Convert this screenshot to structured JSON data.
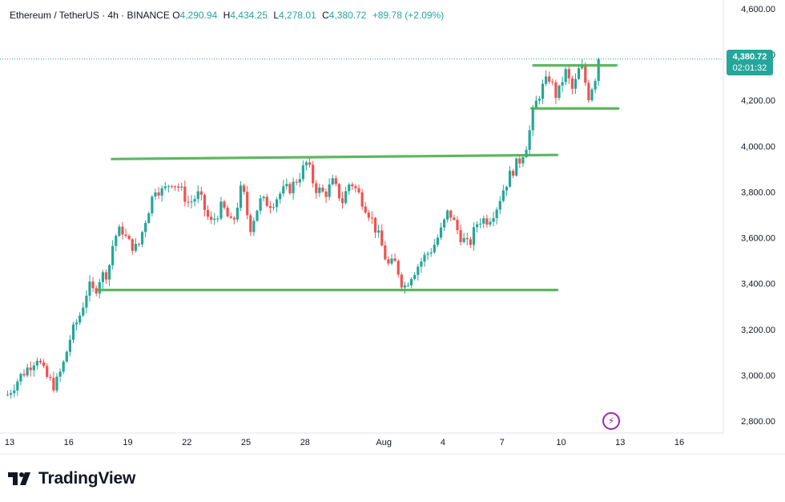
{
  "legend": {
    "symbol": "Ethereum / TetherUS · 4h · BINANCE",
    "open_label": "O",
    "open": "4,290.94",
    "high_label": "H",
    "high": "4,434.25",
    "low_label": "L",
    "low": "4,278.01",
    "close_label": "C",
    "close": "4,380.72",
    "change": "+89.78 (+2.09%)"
  },
  "price_tag": {
    "price": "4,380.72",
    "countdown": "02:01:32"
  },
  "brand": {
    "name": "TradingView"
  },
  "colors": {
    "up": "#26a69a",
    "down": "#ef5350",
    "level": "#4caf50",
    "badge": "#26a69a",
    "flash": "#9c27b0"
  },
  "icons": {
    "logo": "tradingview-logo-icon",
    "flash": "lightning-icon"
  },
  "chart_data": {
    "type": "candlestick",
    "interval": "4h",
    "current_price": 4380.72,
    "ylim": [
      2720,
      4620
    ],
    "y_ticks": [
      2800,
      3000,
      3200,
      3400,
      3600,
      3800,
      4000,
      4200,
      4400,
      4600
    ],
    "y_tick_labels": [
      "2,800.00",
      "3,000.00",
      "3,200.00",
      "3,400.00",
      "3,600.00",
      "3,800.00",
      "4,000.00",
      "4,200.00",
      "4,400.00",
      "4,600.00"
    ],
    "x_range_days": [
      12.9,
      47.0
    ],
    "x_ticks": [
      {
        "day": 13,
        "label": "13"
      },
      {
        "day": 16,
        "label": "16"
      },
      {
        "day": 19,
        "label": "19"
      },
      {
        "day": 22,
        "label": "22"
      },
      {
        "day": 25,
        "label": "25"
      },
      {
        "day": 28,
        "label": "28"
      },
      {
        "day": 32,
        "label": "Aug"
      },
      {
        "day": 35,
        "label": "4"
      },
      {
        "day": 38,
        "label": "7"
      },
      {
        "day": 41,
        "label": "10"
      },
      {
        "day": 44,
        "label": "13"
      },
      {
        "day": 47,
        "label": "16"
      }
    ],
    "levels": [
      {
        "from_day": 17.5,
        "to_day": 40.8,
        "price": 3372
      },
      {
        "from_day": 18.2,
        "to_day": 40.8,
        "price": 3944,
        "to_price": 3962
      },
      {
        "from_day": 39.5,
        "to_day": 43.9,
        "price": 4165
      },
      {
        "from_day": 39.6,
        "to_day": 43.8,
        "price": 4353
      }
    ],
    "path": [
      [
        12.9,
        2915
      ],
      [
        13.5,
        2990
      ],
      [
        14.0,
        3040
      ],
      [
        14.4,
        3080
      ],
      [
        14.8,
        3000
      ],
      [
        15.3,
        2950
      ],
      [
        15.7,
        3040
      ],
      [
        16.1,
        3170
      ],
      [
        16.6,
        3270
      ],
      [
        17.0,
        3390
      ],
      [
        17.3,
        3360
      ],
      [
        17.6,
        3430
      ],
      [
        18.0,
        3450
      ],
      [
        18.3,
        3600
      ],
      [
        18.7,
        3640
      ],
      [
        19.0,
        3580
      ],
      [
        19.5,
        3550
      ],
      [
        19.9,
        3680
      ],
      [
        20.4,
        3820
      ],
      [
        20.8,
        3800
      ],
      [
        21.2,
        3850
      ],
      [
        21.6,
        3820
      ],
      [
        22.1,
        3750
      ],
      [
        22.6,
        3790
      ],
      [
        23.2,
        3660
      ],
      [
        23.8,
        3740
      ],
      [
        24.3,
        3650
      ],
      [
        24.8,
        3830
      ],
      [
        25.2,
        3640
      ],
      [
        25.7,
        3760
      ],
      [
        26.3,
        3750
      ],
      [
        26.8,
        3800
      ],
      [
        27.3,
        3820
      ],
      [
        27.7,
        3870
      ],
      [
        28.1,
        3930
      ],
      [
        28.5,
        3820
      ],
      [
        29.0,
        3790
      ],
      [
        29.4,
        3840
      ],
      [
        29.9,
        3760
      ],
      [
        30.3,
        3850
      ],
      [
        30.8,
        3780
      ],
      [
        31.3,
        3700
      ],
      [
        31.8,
        3590
      ],
      [
        32.2,
        3480
      ],
      [
        32.6,
        3490
      ],
      [
        33.0,
        3380
      ],
      [
        33.4,
        3440
      ],
      [
        34.0,
        3510
      ],
      [
        34.5,
        3560
      ],
      [
        34.9,
        3630
      ],
      [
        35.3,
        3720
      ],
      [
        35.8,
        3620
      ],
      [
        36.3,
        3560
      ],
      [
        36.8,
        3680
      ],
      [
        37.3,
        3680
      ],
      [
        37.7,
        3730
      ],
      [
        38.1,
        3820
      ],
      [
        38.5,
        3890
      ],
      [
        38.9,
        3940
      ],
      [
        39.3,
        4020
      ],
      [
        39.6,
        4160
      ],
      [
        40.0,
        4250
      ],
      [
        40.4,
        4300
      ],
      [
        40.8,
        4210
      ],
      [
        41.2,
        4330
      ],
      [
        41.6,
        4240
      ],
      [
        42.0,
        4360
      ],
      [
        42.4,
        4220
      ],
      [
        42.8,
        4320
      ],
      [
        43.0,
        4380
      ]
    ]
  }
}
